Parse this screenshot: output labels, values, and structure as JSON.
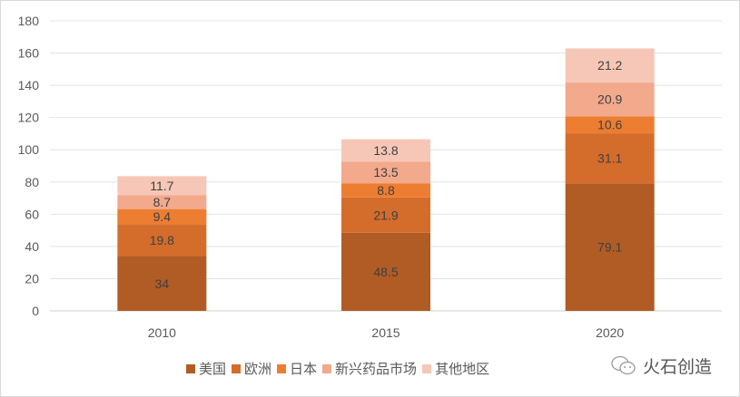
{
  "chart_data": {
    "type": "bar",
    "stacked": true,
    "categories": [
      "2010",
      "2015",
      "2020"
    ],
    "series": [
      {
        "name": "美国",
        "color": "#B05C24",
        "values": [
          34,
          48.5,
          79.1
        ]
      },
      {
        "name": "欧洲",
        "color": "#D46C2C",
        "values": [
          19.8,
          21.9,
          31.1
        ]
      },
      {
        "name": "日本",
        "color": "#ED7D31",
        "values": [
          9.4,
          8.8,
          10.6
        ]
      },
      {
        "name": "新兴药品市场",
        "color": "#F2A98C",
        "values": [
          8.7,
          13.5,
          20.9
        ]
      },
      {
        "name": "其他地区",
        "color": "#F6C7B6",
        "values": [
          11.7,
          13.8,
          21.2
        ]
      }
    ],
    "ylim": [
      0,
      180
    ],
    "yticks": [
      0,
      20,
      40,
      60,
      80,
      100,
      120,
      140,
      160,
      180
    ],
    "grid": true,
    "legend": "bottom",
    "title": "",
    "xlabel": "",
    "ylabel": ""
  },
  "watermark": "火石创造"
}
